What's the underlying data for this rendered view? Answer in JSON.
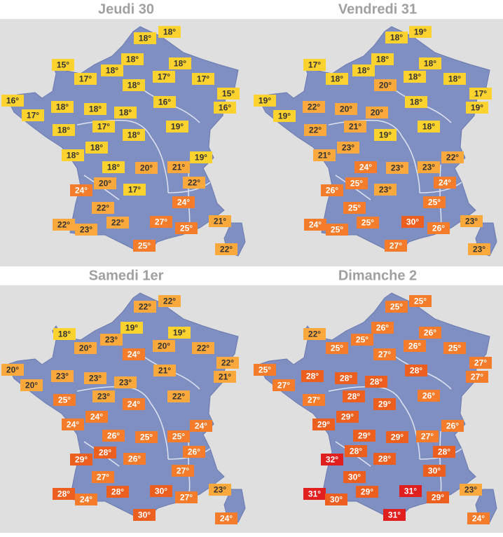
{
  "panels": [
    {
      "title": "Jeudi 30",
      "labels": [
        "18°",
        "18°",
        "15°",
        "18°",
        "18°",
        "17°",
        "18°",
        "17°",
        "17°",
        "15°",
        "16°",
        "18°",
        "16°",
        "16°",
        "17°",
        "18°",
        "18°",
        "18°",
        "17°",
        "19°",
        "18°",
        "18°",
        "18°",
        "18°",
        "19°",
        "18°",
        "20°",
        "21°",
        "20°",
        "17°",
        "22°",
        "24°",
        "22°",
        "24°",
        "22°",
        "23°",
        "22°",
        "27°",
        "25°",
        "21°",
        "25°",
        "22°"
      ]
    },
    {
      "title": "Vendredi 31",
      "labels": [
        "18°",
        "19°",
        "17°",
        "18°",
        "18°",
        "18°",
        "18°",
        "18°",
        "18°",
        "17°",
        "19°",
        "20°",
        "18°",
        "19°",
        "19°",
        "22°",
        "20°",
        "20°",
        "21°",
        "18°",
        "22°",
        "19°",
        "23°",
        "21°",
        "22°",
        "24°",
        "23°",
        "23°",
        "25°",
        "23°",
        "24°",
        "26°",
        "25°",
        "25°",
        "24°",
        "25°",
        "25°",
        "30°",
        "26°",
        "23°",
        "27°",
        "23°"
      ]
    },
    {
      "title": "Samedi 1er",
      "labels": [
        "22°",
        "22°",
        "18°",
        "19°",
        "19°",
        "20°",
        "23°",
        "20°",
        "22°",
        "22°",
        "20°",
        "24°",
        "21°",
        "21°",
        "20°",
        "23°",
        "23°",
        "23°",
        "23°",
        "22°",
        "25°",
        "24°",
        "24°",
        "24°",
        "24°",
        "26°",
        "25°",
        "25°",
        "28°",
        "26°",
        "26°",
        "29°",
        "27°",
        "27°",
        "28°",
        "24°",
        "28°",
        "30°",
        "27°",
        "23°",
        "30°",
        "24°"
      ]
    },
    {
      "title": "Dimanche 2",
      "labels": [
        "25°",
        "25°",
        "22°",
        "26°",
        "26°",
        "25°",
        "25°",
        "27°",
        "26°",
        "25°",
        "27°",
        "25°",
        "28°",
        "27°",
        "27°",
        "28°",
        "28°",
        "28°",
        "28°",
        "26°",
        "27°",
        "29°",
        "29°",
        "29°",
        "26°",
        "29°",
        "29°",
        "27°",
        "28°",
        "28°",
        "28°",
        "32°",
        "30°",
        "30°",
        "31°",
        "30°",
        "29°",
        "31°",
        "29°",
        "23°",
        "31°",
        "24°"
      ]
    }
  ]
}
